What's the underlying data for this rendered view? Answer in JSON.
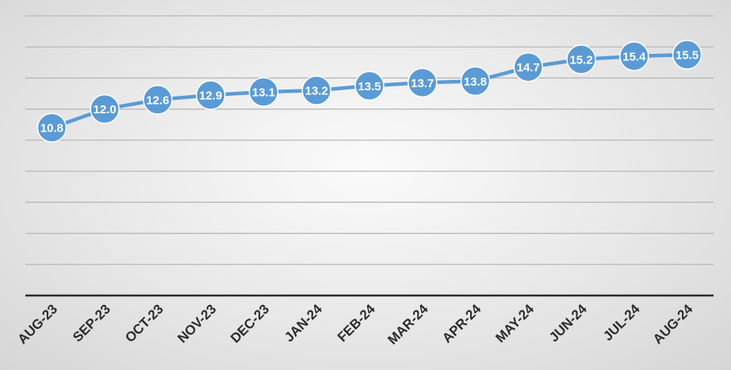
{
  "chart_data": {
    "type": "line",
    "title": "",
    "xlabel": "",
    "ylabel": "",
    "categories": [
      "AUG-23",
      "SEP-23",
      "OCT-23",
      "NOV-23",
      "DEC-23",
      "JAN-24",
      "FEB-24",
      "MAR-24",
      "APR-24",
      "MAY-24",
      "JUN-24",
      "JUL-24",
      "AUG-24"
    ],
    "series": [
      {
        "values": [
          10.8,
          12.0,
          12.6,
          12.9,
          13.1,
          13.2,
          13.5,
          13.7,
          13.8,
          14.7,
          15.2,
          15.4,
          15.5
        ]
      }
    ],
    "data_labels": [
      "10.8",
      "12.0",
      "12.6",
      "12.9",
      "13.1",
      "13.2",
      "13.5",
      "13.7",
      "13.8",
      "14.7",
      "15.2",
      "15.4",
      "15.5"
    ],
    "ylim": [
      0,
      18
    ],
    "grid": true,
    "legend": "none",
    "y_tick_labels_shown": false,
    "colors": {
      "series": "#5b9bd5",
      "gridline": "#b8b8b8",
      "axis": "#2b2b2b",
      "data_label_text": "#ffffff"
    }
  }
}
